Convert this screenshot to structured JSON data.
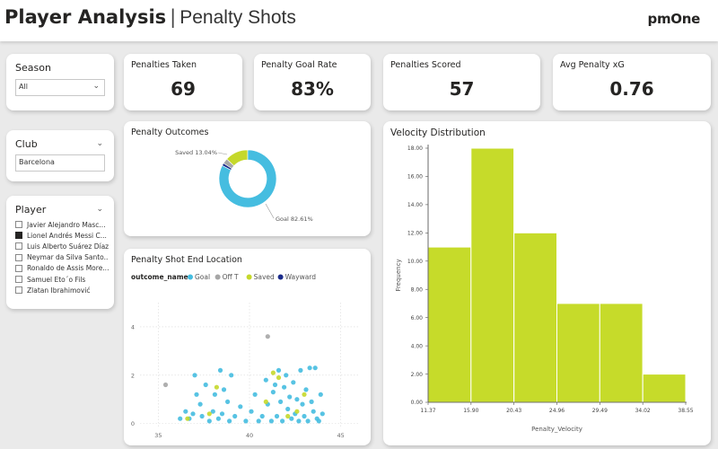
{
  "header": {
    "title_main": "Player Analysis",
    "separator": "|",
    "title_sub": "Penalty Shots",
    "logo": "pmOne"
  },
  "slicers": {
    "season": {
      "label": "Season",
      "value": "All"
    },
    "club": {
      "label": "Club",
      "value": "Barcelona"
    },
    "player": {
      "label": "Player",
      "items": [
        {
          "name": "Javier Alejandro Masc...",
          "selected": false
        },
        {
          "name": "Lionel Andrés Messi C...",
          "selected": true
        },
        {
          "name": "Luis Alberto Suárez Díaz",
          "selected": false
        },
        {
          "name": "Neymar da Silva Santo...",
          "selected": false
        },
        {
          "name": "Ronaldo de Assis More...",
          "selected": false
        },
        {
          "name": "Samuel Eto´o Fils",
          "selected": false
        },
        {
          "name": "Zlatan Ibrahimović",
          "selected": false
        }
      ]
    }
  },
  "kpis": [
    {
      "label": "Penalties Taken",
      "value": "69"
    },
    {
      "label": "Penalty Goal Rate",
      "value": "83%"
    },
    {
      "label": "Penalties Scored",
      "value": "57"
    },
    {
      "label": "Avg Penalty xG",
      "value": "0.76"
    }
  ],
  "colors": {
    "goal": "#45bde0",
    "off_target": "#a6a6a6",
    "saved": "#c5d82b",
    "wayward": "#1a2b8a",
    "histogram": "#c6db2a"
  },
  "chart_data": [
    {
      "type": "pie",
      "title": "Penalty Outcomes",
      "slices": [
        {
          "name": "Goal",
          "value": 82.61,
          "label": "Goal 82.61%"
        },
        {
          "name": "Saved",
          "value": 13.04,
          "label": "Saved 13.04%"
        },
        {
          "name": "Off T",
          "value": 2.9,
          "label": ""
        },
        {
          "name": "Wayward",
          "value": 1.45,
          "label": ""
        }
      ]
    },
    {
      "type": "scatter",
      "title": "Penalty Shot End Location",
      "legend_title": "outcome_name",
      "legend": [
        "Goal",
        "Off T",
        "Saved",
        "Wayward"
      ],
      "xlim": [
        34,
        46
      ],
      "ylim": [
        -0.2,
        5
      ],
      "x_ticks": [
        35,
        40,
        45
      ],
      "y_ticks": [
        0,
        2,
        4
      ],
      "grid": true,
      "series": [
        {
          "name": "Goal",
          "points": [
            [
              36.5,
              0.5
            ],
            [
              36.7,
              0.2
            ],
            [
              36.9,
              0.4
            ],
            [
              37.1,
              1.2
            ],
            [
              37.3,
              0.8
            ],
            [
              37.4,
              0.3
            ],
            [
              37.6,
              1.6
            ],
            [
              37.8,
              0.1
            ],
            [
              38.0,
              0.5
            ],
            [
              38.1,
              1.2
            ],
            [
              38.3,
              0.2
            ],
            [
              38.5,
              0.4
            ],
            [
              38.6,
              1.4
            ],
            [
              38.8,
              0.9
            ],
            [
              38.9,
              0.1
            ],
            [
              39.2,
              0.3
            ],
            [
              39.5,
              0.7
            ],
            [
              39.8,
              0.1
            ],
            [
              40.1,
              0.5
            ],
            [
              40.3,
              1.2
            ],
            [
              40.5,
              0.1
            ],
            [
              40.7,
              0.3
            ],
            [
              40.9,
              1.8
            ],
            [
              41.0,
              0.8
            ],
            [
              41.2,
              0.1
            ],
            [
              41.3,
              1.3
            ],
            [
              41.4,
              1.6
            ],
            [
              41.5,
              0.3
            ],
            [
              41.6,
              2.2
            ],
            [
              41.7,
              0.9
            ],
            [
              41.8,
              0.1
            ],
            [
              41.9,
              1.5
            ],
            [
              42.0,
              2.0
            ],
            [
              42.1,
              0.6
            ],
            [
              42.2,
              1.1
            ],
            [
              42.3,
              0.2
            ],
            [
              42.4,
              1.7
            ],
            [
              42.5,
              0.4
            ],
            [
              42.6,
              1.0
            ],
            [
              42.7,
              0.1
            ],
            [
              42.8,
              2.2
            ],
            [
              42.9,
              0.8
            ],
            [
              43.0,
              0.3
            ],
            [
              43.1,
              1.4
            ],
            [
              43.2,
              0.1
            ],
            [
              43.3,
              2.3
            ],
            [
              43.4,
              0.9
            ],
            [
              43.5,
              0.5
            ],
            [
              43.6,
              2.3
            ],
            [
              43.7,
              0.2
            ],
            [
              43.8,
              0.1
            ],
            [
              44.0,
              0.4
            ],
            [
              37.0,
              2.0
            ],
            [
              38.4,
              2.2
            ],
            [
              36.2,
              0.2
            ],
            [
              39.0,
              2.0
            ],
            [
              43.9,
              1.2
            ]
          ]
        },
        {
          "name": "Off T",
          "points": [
            [
              35.4,
              1.6
            ],
            [
              41.0,
              3.6
            ]
          ]
        },
        {
          "name": "Saved",
          "points": [
            [
              36.6,
              0.2
            ],
            [
              37.8,
              0.4
            ],
            [
              40.9,
              0.9
            ],
            [
              41.6,
              1.9
            ],
            [
              42.1,
              0.3
            ],
            [
              42.6,
              0.5
            ],
            [
              43.0,
              1.2
            ],
            [
              41.3,
              2.1
            ],
            [
              38.2,
              1.5
            ]
          ]
        },
        {
          "name": "Wayward",
          "points": []
        }
      ]
    },
    {
      "type": "bar",
      "title": "Velocity Distribution",
      "xlabel": "Penalty_Velocity",
      "ylabel": "Frequency",
      "bin_edges": [
        "11.37",
        "15.90",
        "20.43",
        "24.96",
        "29.49",
        "34.02",
        "38.55"
      ],
      "values": [
        11,
        18,
        12,
        7,
        7,
        2
      ],
      "ylim": [
        0,
        18
      ],
      "y_ticks": [
        "0.00",
        "2.00",
        "4.00",
        "6.00",
        "8.00",
        "10.00",
        "12.00",
        "14.00",
        "16.00",
        "18.00"
      ]
    }
  ]
}
